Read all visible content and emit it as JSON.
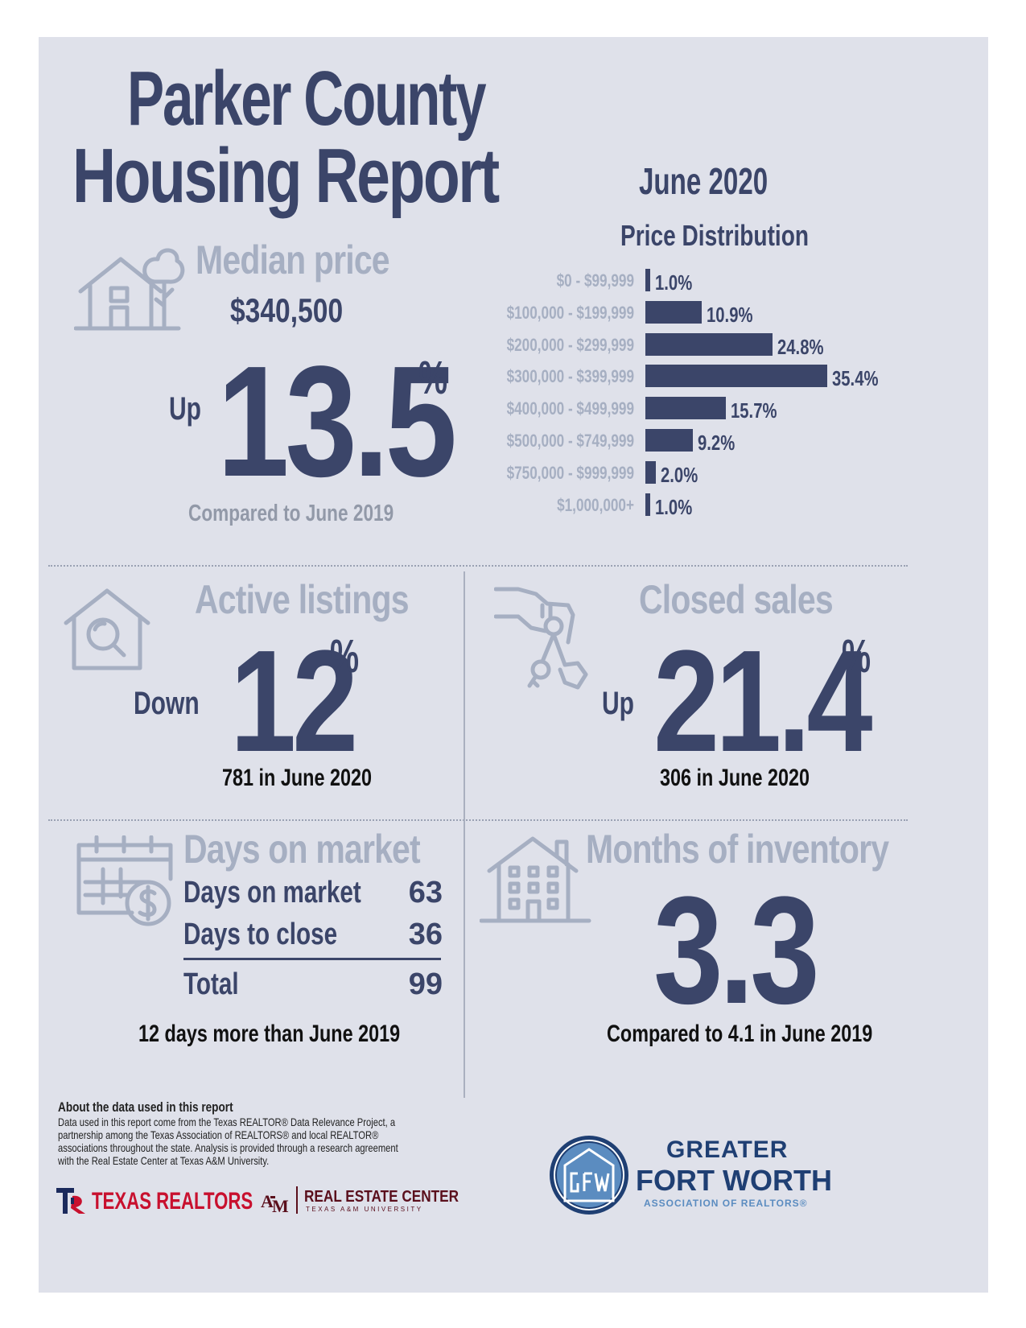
{
  "title_line1": "Parker County",
  "title_line2": "Housing Report",
  "period": "June 2020",
  "median": {
    "heading": "Median price",
    "price": "$340,500",
    "direction": "Up",
    "change": "13.5",
    "pct": "%",
    "compare": "Compared to June 2019"
  },
  "chart_data": {
    "type": "bar",
    "title": "Price Distribution",
    "orientation": "horizontal",
    "categories": [
      "$0 - $99,999",
      "$100,000 - $199,999",
      "$200,000 - $299,999",
      "$300,000 - $399,999",
      "$400,000 - $499,999",
      "$500,000 - $749,999",
      "$750,000 - $999,999",
      "$1,000,000+"
    ],
    "values": [
      1.0,
      10.9,
      24.8,
      35.4,
      15.7,
      9.2,
      2.0,
      1.0
    ],
    "value_labels": [
      "1.0%",
      "10.9%",
      "24.8%",
      "35.4%",
      "15.7%",
      "9.2%",
      "2.0%",
      "1.0%"
    ],
    "color": "#3b4569"
  },
  "active": {
    "heading": "Active listings",
    "direction": "Down",
    "change": "12",
    "pct": "%",
    "sub": "781 in June 2020"
  },
  "closed": {
    "heading": "Closed sales",
    "direction": "Up",
    "change": "21.4",
    "pct": "%",
    "sub": "306 in June 2020"
  },
  "dom": {
    "heading": "Days on market",
    "rows": [
      {
        "label": "Days on market",
        "value": "63"
      },
      {
        "label": "Days to close",
        "value": "36"
      }
    ],
    "total_label": "Total",
    "total_value": "99",
    "sub": "12 days more than June 2019"
  },
  "inventory": {
    "heading": "Months of inventory",
    "value": "3.3",
    "sub": "Compared to 4.1 in June 2019"
  },
  "footer": {
    "about_title": "About the data used in this report",
    "about_lines": [
      "Data used in this report come from the Texas REALTOR® Data Relevance Project, a",
      "partnership among the Texas Association of REALTORS® and local REALTOR®",
      "associations throughout the state. Analysis is provided through a research agreement",
      "with the Real Estate Center at Texas A&M University."
    ],
    "logo_texas_realtors": "TEXAS REALTORS",
    "logo_rec_main": "REAL ESTATE CENTER",
    "logo_rec_sub": "TEXAS A&M UNIVERSITY",
    "gfw_line1": "GREATER",
    "gfw_line2": "FORT WORTH",
    "gfw_line3": "ASSOCIATION OF REALTORS®"
  },
  "colors": {
    "navy": "#3b4569",
    "grey": "#a6afc2",
    "background": "#dfe1ea"
  }
}
